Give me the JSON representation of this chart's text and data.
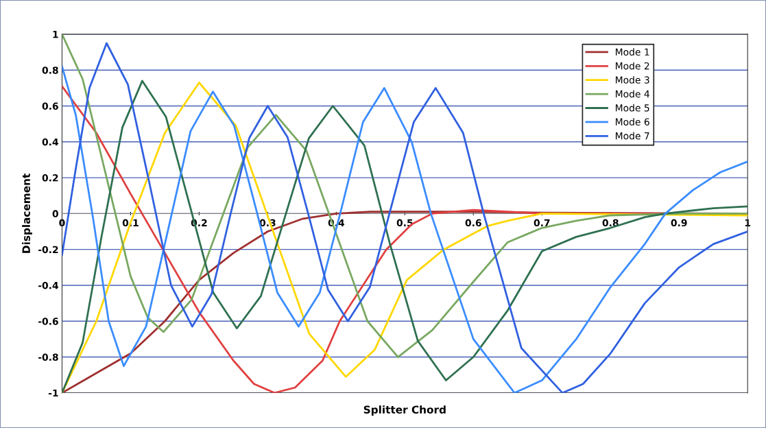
{
  "chart_data": {
    "type": "line",
    "xlabel": "Splitter Chord",
    "ylabel": "Displacement",
    "xlim": [
      0,
      1
    ],
    "ylim": [
      -1,
      1
    ],
    "xticks": [
      0,
      0.1,
      0.2,
      0.3,
      0.4,
      0.5,
      0.6,
      0.7,
      0.8,
      0.9,
      1
    ],
    "yticks": [
      -1,
      -0.8,
      -0.6,
      -0.4,
      -0.2,
      0,
      0.2,
      0.4,
      0.6,
      0.8,
      1
    ],
    "grid": "y",
    "legend": "top right",
    "marker": "none",
    "line_style": "solid",
    "series": [
      {
        "name": "Mode 1",
        "color": "#a03030",
        "x": [
          0,
          0.05,
          0.1,
          0.15,
          0.2,
          0.25,
          0.3,
          0.35,
          0.4,
          0.45,
          0.5,
          0.6,
          0.7,
          1
        ],
        "values": [
          -1,
          -0.89,
          -0.78,
          -0.6,
          -0.37,
          -0.22,
          -0.1,
          -0.03,
          0.0,
          0.01,
          0.01,
          0.01,
          0.005,
          0.0
        ]
      },
      {
        "name": "Mode 2",
        "color": "#e04040",
        "x": [
          0,
          0.05,
          0.1,
          0.15,
          0.2,
          0.25,
          0.28,
          0.31,
          0.34,
          0.38,
          0.405,
          0.473,
          0.51,
          0.54,
          0.6,
          0.65,
          0.7,
          1
        ],
        "values": [
          0.71,
          0.45,
          0.11,
          -0.22,
          -0.55,
          -0.82,
          -0.95,
          -1.0,
          -0.97,
          -0.82,
          -0.6,
          -0.2,
          -0.06,
          0.0,
          0.02,
          0.01,
          0.0,
          0.0
        ]
      },
      {
        "name": "Mode 3",
        "color": "#ffd700",
        "x": [
          0,
          0.05,
          0.1,
          0.15,
          0.2,
          0.2535,
          0.307,
          0.3605,
          0.414,
          0.456,
          0.503,
          0.557,
          0.62,
          0.65,
          0.7,
          1
        ],
        "values": [
          -1,
          -0.6,
          -0.05,
          0.45,
          0.73,
          0.49,
          -0.09,
          -0.67,
          -0.91,
          -0.76,
          -0.37,
          -0.2,
          -0.07,
          -0.04,
          0.0,
          -0.01
        ]
      },
      {
        "name": "Mode 4",
        "color": "#78a860",
        "x": [
          0,
          0.03,
          0.065,
          0.1,
          0.125,
          0.148,
          0.189,
          0.23,
          0.271,
          0.312,
          0.3565,
          0.401,
          0.4455,
          0.49,
          0.54,
          0.6,
          0.65,
          0.7,
          0.75,
          0.8,
          0.9,
          1
        ],
        "values": [
          1,
          0.75,
          0.2,
          -0.35,
          -0.58,
          -0.66,
          -0.48,
          -0.055,
          0.37,
          0.55,
          0.35,
          -0.125,
          -0.6,
          -0.8,
          -0.65,
          -0.38,
          -0.16,
          -0.08,
          -0.04,
          -0.01,
          0.0,
          0.0
        ]
      },
      {
        "name": "Mode 5",
        "color": "#2e7050",
        "x": [
          0,
          0.03,
          0.058,
          0.088,
          0.117,
          0.1515,
          0.186,
          0.2205,
          0.255,
          0.29,
          0.325,
          0.36,
          0.395,
          0.441,
          0.478,
          0.519,
          0.56,
          0.6,
          0.65,
          0.7,
          0.75,
          0.8,
          0.85,
          0.88,
          0.95,
          1
        ],
        "values": [
          -1,
          -0.72,
          -0.12,
          0.48,
          0.74,
          0.54,
          0.05,
          -0.44,
          -0.64,
          -0.46,
          -0.02,
          0.42,
          0.6,
          0.38,
          -0.165,
          -0.71,
          -0.93,
          -0.8,
          -0.54,
          -0.21,
          -0.13,
          -0.08,
          -0.02,
          0.0,
          0.03,
          0.04
        ]
      },
      {
        "name": "Mode 6",
        "color": "#3a8cff",
        "x": [
          0,
          0.02,
          0.045,
          0.068,
          0.09,
          0.1225,
          0.155,
          0.1875,
          0.22,
          0.251,
          0.283,
          0.314,
          0.345,
          0.376,
          0.408,
          0.439,
          0.47,
          0.51,
          0.538,
          0.6,
          0.66,
          0.7,
          0.75,
          0.8,
          0.85,
          0.88,
          0.92,
          0.96,
          1
        ],
        "values": [
          0.82,
          0.55,
          -0.02,
          -0.6,
          -0.85,
          -0.63,
          -0.085,
          0.46,
          0.68,
          0.49,
          0.025,
          -0.44,
          -0.63,
          -0.44,
          0.035,
          0.51,
          0.7,
          0.4,
          0.0,
          -0.7,
          -1.0,
          -0.93,
          -0.7,
          -0.41,
          -0.17,
          0.0,
          0.13,
          0.23,
          0.29
        ]
      },
      {
        "name": "Mode 7",
        "color": "#3060e0",
        "x": [
          0,
          0.02,
          0.04,
          0.065,
          0.096,
          0.128,
          0.159,
          0.19,
          0.218,
          0.245,
          0.273,
          0.3,
          0.329,
          0.359,
          0.388,
          0.417,
          0.449,
          0.481,
          0.513,
          0.545,
          0.585,
          0.615,
          0.67,
          0.73,
          0.76,
          0.8,
          0.85,
          0.9,
          0.95,
          1
        ],
        "values": [
          -0.23,
          0.25,
          0.7,
          0.95,
          0.72,
          0.16,
          -0.4,
          -0.63,
          -0.45,
          -0.015,
          0.42,
          0.6,
          0.425,
          0.0,
          -0.425,
          -0.6,
          -0.41,
          0.05,
          0.51,
          0.7,
          0.45,
          0.0,
          -0.75,
          -1.0,
          -0.95,
          -0.78,
          -0.5,
          -0.3,
          -0.17,
          -0.1
        ]
      }
    ]
  }
}
